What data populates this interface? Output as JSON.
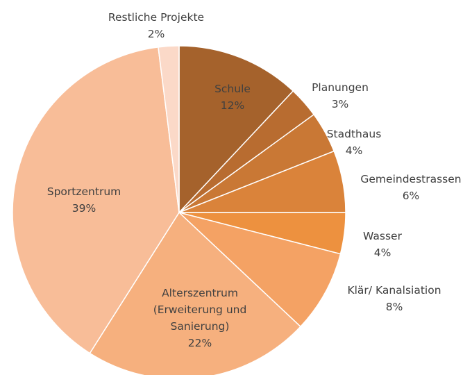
{
  "chart_data": {
    "type": "pie",
    "categories": [
      "Schule",
      "Planungen",
      "Stadthaus",
      "Gemeindestrassen",
      "Wasser",
      "Klär/ Kanalsiation",
      "Alterszentrum (Erweiterung und Sanierung)",
      "Sportzentrum",
      "Restliche Projekte"
    ],
    "values": [
      12,
      3,
      4,
      6,
      4,
      8,
      22,
      39,
      2
    ],
    "value_labels": [
      "12%",
      "3%",
      "4%",
      "6%",
      "4%",
      "8%",
      "22%",
      "39%",
      "2%"
    ],
    "colors": [
      "#a5622c",
      "#b86c30",
      "#c97835",
      "#da833a",
      "#ed913f",
      "#f4a264",
      "#f6b07e",
      "#f8bd98",
      "#fbd9c8"
    ]
  }
}
